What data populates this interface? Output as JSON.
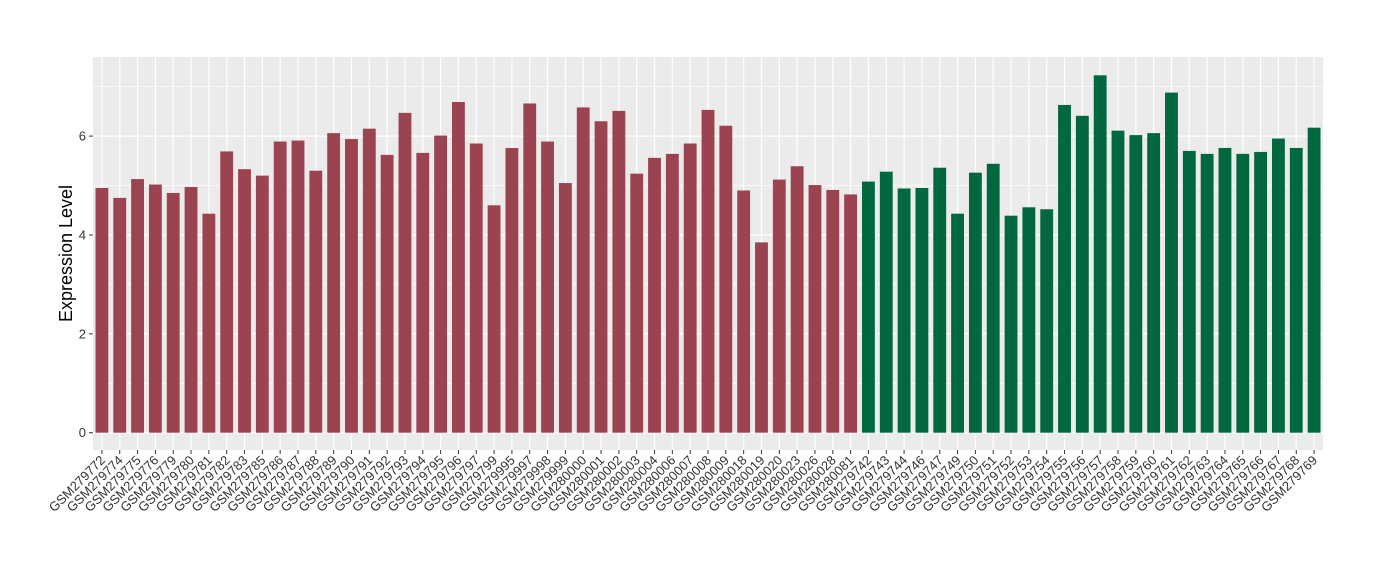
{
  "chart_data": {
    "type": "bar",
    "title": "",
    "xlabel": "",
    "ylabel": "Expression Level",
    "ylim": [
      -0.35,
      7.6
    ],
    "yticks": [
      0,
      2,
      4,
      6
    ],
    "grid": true,
    "legend": "none",
    "background_color": "#EBEBEB",
    "grid_color": "#FFFFFF",
    "categories": [
      "GSM279772",
      "GSM279774",
      "GSM279775",
      "GSM279776",
      "GSM279779",
      "GSM279780",
      "GSM279781",
      "GSM279782",
      "GSM279783",
      "GSM279785",
      "GSM279786",
      "GSM279787",
      "GSM279788",
      "GSM279789",
      "GSM279790",
      "GSM279791",
      "GSM279792",
      "GSM279793",
      "GSM279794",
      "GSM279795",
      "GSM279796",
      "GSM279797",
      "GSM279799",
      "GSM279995",
      "GSM279997",
      "GSM279998",
      "GSM279999",
      "GSM280000",
      "GSM280001",
      "GSM280002",
      "GSM280003",
      "GSM280004",
      "GSM280006",
      "GSM280007",
      "GSM280008",
      "GSM280009",
      "GSM280018",
      "GSM280019",
      "GSM280020",
      "GSM280023",
      "GSM280026",
      "GSM280028",
      "GSM280081",
      "GSM279742",
      "GSM279743",
      "GSM279744",
      "GSM279746",
      "GSM279747",
      "GSM279749",
      "GSM279750",
      "GSM279751",
      "GSM279752",
      "GSM279753",
      "GSM279754",
      "GSM279755",
      "GSM279756",
      "GSM279757",
      "GSM279758",
      "GSM279759",
      "GSM279760",
      "GSM279761",
      "GSM279762",
      "GSM279763",
      "GSM279764",
      "GSM279765",
      "GSM279766",
      "GSM279767",
      "GSM279768",
      "GSM279769"
    ],
    "values": [
      4.95,
      4.75,
      5.13,
      5.02,
      4.85,
      4.97,
      4.43,
      5.69,
      5.33,
      5.2,
      5.89,
      5.91,
      5.3,
      6.06,
      5.94,
      6.15,
      5.62,
      6.47,
      5.66,
      6.01,
      6.69,
      5.85,
      4.6,
      5.76,
      6.66,
      5.89,
      5.05,
      6.58,
      6.3,
      6.51,
      5.24,
      5.56,
      5.64,
      5.85,
      6.53,
      6.21,
      4.9,
      3.85,
      5.12,
      5.39,
      5.01,
      4.91,
      4.82,
      5.08,
      5.28,
      4.94,
      4.95,
      5.36,
      4.43,
      5.26,
      5.44,
      4.39,
      4.56,
      4.52,
      6.63,
      6.41,
      7.23,
      6.11,
      6.02,
      6.06,
      6.88,
      5.7,
      5.64,
      5.76,
      5.64,
      5.68,
      5.95,
      5.76,
      6.17
    ],
    "group_colors": {
      "first": "#9B4350",
      "second": "#00673F"
    },
    "group_split_index": 43
  }
}
